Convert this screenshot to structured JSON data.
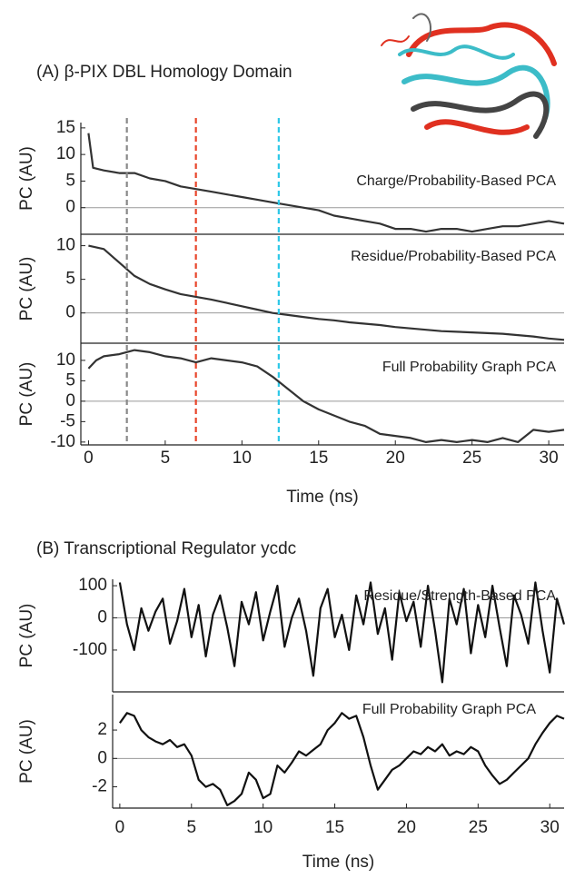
{
  "chart_data": [
    {
      "type": "line",
      "title": "(A) β-PIX DBL Homology Domain",
      "label": "Charge/Probability-Based PCA",
      "ylabel": "PC (AU)",
      "xlim": [
        -0.5,
        31
      ],
      "ylim": [
        -5,
        16
      ],
      "yticks": [
        0,
        5,
        10,
        15
      ],
      "vlines": [
        {
          "x": 2.5,
          "color": "#888888"
        },
        {
          "x": 7,
          "color": "#e8452a"
        },
        {
          "x": 12.4,
          "color": "#2ec8e8"
        }
      ],
      "x": [
        0,
        0.3,
        1,
        2,
        3,
        4,
        5,
        6,
        7,
        8,
        9,
        10,
        11,
        12,
        13,
        14,
        15,
        16,
        17,
        18,
        19,
        20,
        21,
        22,
        23,
        24,
        25,
        26,
        27,
        28,
        29,
        30,
        31
      ],
      "series": [
        {
          "color": "#333333",
          "values": [
            14,
            7.5,
            7,
            6.5,
            6.5,
            5.5,
            5,
            4,
            3.5,
            3,
            2.5,
            2,
            1.5,
            1,
            0.5,
            0,
            -0.5,
            -1.5,
            -2,
            -2.5,
            -3,
            -4,
            -4,
            -4.5,
            -4,
            -4,
            -4.5,
            -4,
            -3.5,
            -3.5,
            -3,
            -2.5,
            -3
          ]
        }
      ]
    },
    {
      "type": "line",
      "label": "Residue/Probability-Based PCA",
      "ylabel": "PC (AU)",
      "xlim": [
        -0.5,
        31
      ],
      "ylim": [
        -4.5,
        11.7
      ],
      "yticks": [
        0,
        5,
        10
      ],
      "x": [
        0,
        1,
        2,
        3,
        4,
        5,
        6,
        7,
        8,
        9,
        10,
        11,
        12,
        13,
        14,
        15,
        16,
        17,
        18,
        19,
        20,
        21,
        22,
        23,
        24,
        25,
        26,
        27,
        28,
        29,
        30,
        31
      ],
      "series": [
        {
          "color": "#333333",
          "values": [
            10,
            9.5,
            7.5,
            5.5,
            4.3,
            3.5,
            2.8,
            2.4,
            2,
            1.5,
            1,
            0.5,
            0,
            -0.3,
            -0.6,
            -0.9,
            -1.1,
            -1.4,
            -1.6,
            -1.8,
            -2.1,
            -2.3,
            -2.5,
            -2.7,
            -2.8,
            -2.9,
            -3,
            -3.1,
            -3.3,
            -3.5,
            -3.8,
            -4
          ]
        }
      ]
    },
    {
      "type": "line",
      "label": "Full Probability Graph PCA",
      "ylabel": "PC (AU)",
      "xlabel": "Time (ns)",
      "xlim": [
        -0.5,
        31
      ],
      "ylim": [
        -10.7,
        14.2
      ],
      "yticks": [
        -10,
        -5,
        0,
        5,
        10
      ],
      "xticks": [
        0,
        5,
        10,
        15,
        20,
        25,
        30
      ],
      "x": [
        0,
        0.5,
        1,
        2,
        3,
        4,
        5,
        6,
        7,
        8,
        9,
        10,
        11,
        12,
        13,
        14,
        15,
        16,
        17,
        18,
        19,
        20,
        21,
        22,
        23,
        24,
        25,
        26,
        27,
        28,
        29,
        30,
        31
      ],
      "series": [
        {
          "color": "#333333",
          "values": [
            8,
            10,
            11,
            11.5,
            12.5,
            12,
            11,
            10.5,
            9.5,
            10.5,
            10,
            9.5,
            8.5,
            6,
            3,
            0,
            -2,
            -3.5,
            -5,
            -6,
            -8,
            -8.5,
            -9,
            -10,
            -9.5,
            -10,
            -9.5,
            -10,
            -9,
            -10,
            -7,
            -7.5,
            -7
          ]
        }
      ]
    },
    {
      "type": "line",
      "title": "(B) Transcriptional Regulator ycdc",
      "label": "Residue/Strength-Based PCA",
      "ylabel": "PC (AU)",
      "xlim": [
        -0.5,
        31
      ],
      "ylim": [
        -230,
        120
      ],
      "yticks": [
        -100,
        0,
        100
      ],
      "x": [
        0,
        0.5,
        1,
        1.5,
        2,
        2.5,
        3,
        3.5,
        4,
        4.5,
        5,
        5.5,
        6,
        6.5,
        7,
        7.5,
        8,
        8.5,
        9,
        9.5,
        10,
        10.5,
        11,
        11.5,
        12,
        12.5,
        13,
        13.5,
        14,
        14.5,
        15,
        15.5,
        16,
        16.5,
        17,
        17.5,
        18,
        18.5,
        19,
        19.5,
        20,
        20.5,
        21,
        21.5,
        22,
        22.5,
        23,
        23.5,
        24,
        24.5,
        25,
        25.5,
        26,
        26.5,
        27,
        27.5,
        28,
        28.5,
        29,
        29.5,
        30,
        30.5,
        31
      ],
      "series": [
        {
          "color": "#111111",
          "values": [
            110,
            -20,
            -100,
            30,
            -40,
            20,
            60,
            -80,
            -10,
            90,
            -60,
            40,
            -120,
            10,
            70,
            -30,
            -150,
            50,
            -20,
            80,
            -70,
            20,
            100,
            -90,
            0,
            60,
            -40,
            -180,
            30,
            90,
            -60,
            10,
            -100,
            70,
            -20,
            110,
            -50,
            30,
            -130,
            80,
            -10,
            50,
            -90,
            100,
            -40,
            -200,
            60,
            -20,
            90,
            -110,
            40,
            -60,
            100,
            -30,
            -150,
            70,
            10,
            -80,
            110,
            -40,
            -170,
            60,
            -20
          ]
        }
      ]
    },
    {
      "type": "line",
      "label": "Full Probability Graph PCA",
      "ylabel": "PC (AU)",
      "xlabel": "Time (ns)",
      "xlim": [
        -0.5,
        31
      ],
      "ylim": [
        -3.5,
        4.5
      ],
      "yticks": [
        -2,
        0,
        2
      ],
      "xticks": [
        0,
        5,
        10,
        15,
        20,
        25,
        30
      ],
      "x": [
        0,
        0.5,
        1,
        1.5,
        2,
        2.5,
        3,
        3.5,
        4,
        4.5,
        5,
        5.5,
        6,
        6.5,
        7,
        7.5,
        8,
        8.5,
        9,
        9.5,
        10,
        10.5,
        11,
        11.5,
        12,
        12.5,
        13,
        13.5,
        14,
        14.5,
        15,
        15.5,
        16,
        16.5,
        17,
        17.5,
        18,
        18.5,
        19,
        19.5,
        20,
        20.5,
        21,
        21.5,
        22,
        22.5,
        23,
        23.5,
        24,
        24.5,
        25,
        25.5,
        26,
        26.5,
        27,
        27.5,
        28,
        28.5,
        29,
        29.5,
        30,
        30.5,
        31
      ],
      "series": [
        {
          "color": "#111111",
          "values": [
            2.5,
            3.2,
            3,
            2,
            1.5,
            1.2,
            1,
            1.3,
            0.8,
            1,
            0.2,
            -1.5,
            -2,
            -1.8,
            -2.2,
            -3.3,
            -3,
            -2.5,
            -1,
            -1.5,
            -2.8,
            -2.5,
            -0.5,
            -1,
            -0.3,
            0.5,
            0.2,
            0.6,
            1,
            2,
            2.5,
            3.2,
            2.8,
            3,
            1.5,
            -0.5,
            -2.2,
            -1.5,
            -0.8,
            -0.5,
            0,
            0.5,
            0.3,
            0.8,
            0.5,
            1,
            0.2,
            0.5,
            0.3,
            0.8,
            0.5,
            -0.5,
            -1.2,
            -1.8,
            -1.5,
            -1,
            -0.5,
            0,
            1,
            1.8,
            2.5,
            3,
            2.8
          ]
        }
      ]
    }
  ]
}
